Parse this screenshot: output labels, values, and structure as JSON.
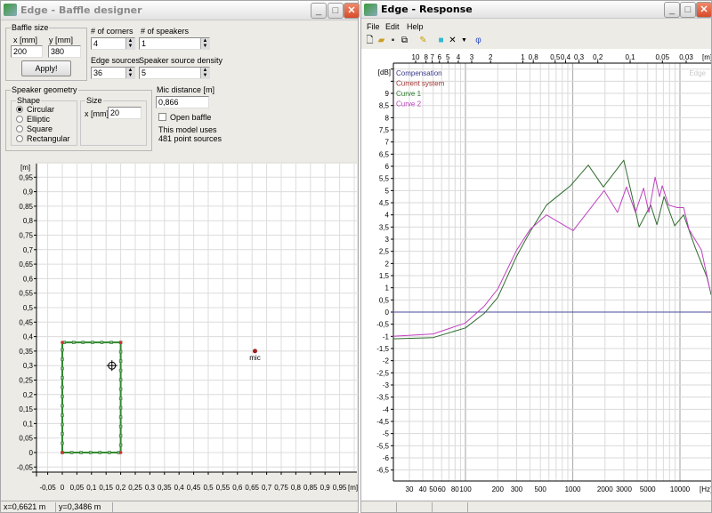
{
  "baffle_window": {
    "title": "Edge - Baffle designer",
    "baffle_size": {
      "legend": "Baffle size",
      "x_label": "x [mm]",
      "y_label": "y [mm]",
      "x_value": "200",
      "y_value": "380",
      "apply_label": "Apply!"
    },
    "corners": {
      "label": "# of corners",
      "value": "4"
    },
    "speakers": {
      "label": "# of speakers",
      "value": "1"
    },
    "edge_sources": {
      "label": "Edge sources",
      "value": "36"
    },
    "speaker_density": {
      "label": "Speaker source density",
      "value": "5"
    },
    "speaker_geometry": {
      "legend": "Speaker geometry",
      "shape_legend": "Shape",
      "shapes": [
        "Circular",
        "Elliptic",
        "Square",
        "Rectangular"
      ],
      "selected_shape": "Circular",
      "size_legend": "Size",
      "size_label": "x [mm]",
      "size_value": "20"
    },
    "mic_distance": {
      "label": "Mic distance [m]",
      "value": "0,866"
    },
    "open_baffle": {
      "label": "Open baffle",
      "checked": false
    },
    "model_info": [
      "This model uses",
      "481 point sources"
    ],
    "plot": {
      "unit": "[m]",
      "mic_label": "mic",
      "x_ticks": [
        "-0,05",
        "0",
        "0,05",
        "0,1",
        "0,15",
        "0,2",
        "0,25",
        "0,3",
        "0,35",
        "0,4",
        "0,45",
        "0,5",
        "0,55",
        "0,6",
        "0,65",
        "0,7",
        "0,75",
        "0,8",
        "0,85",
        "0,9",
        "0,95"
      ],
      "y_ticks": [
        "-0,05",
        "0",
        "0,05",
        "0,1",
        "0,15",
        "0,2",
        "0,25",
        "0,3",
        "0,35",
        "0,4",
        "0,45",
        "0,5",
        "0,55",
        "0,6",
        "0,65",
        "0,7",
        "0,75",
        "0,8",
        "0,85",
        "0,9",
        "0,95"
      ],
      "baffle": [
        0.2,
        0.38
      ],
      "speaker": [
        0.17,
        0.3
      ],
      "mic": [
        0.66,
        0.35
      ]
    },
    "status": {
      "x": "x=0,6621 m",
      "y": "y=0,3486 m"
    }
  },
  "response_window": {
    "title": "Edge - Response",
    "menu": [
      "File",
      "Edit",
      "Help"
    ],
    "toolbar": [
      "new-icon",
      "open-icon",
      "save-icon",
      "copy-icon",
      "pencil-icon",
      "display-icon",
      "delete-icon",
      "dropdown-icon",
      "phase-icon"
    ],
    "watermark": "Edge"
  },
  "chart_data": {
    "type": "line",
    "ylabel": "[dB]",
    "xlabel": "[Hz]",
    "top_axis_label": "[m]",
    "x_scale": "log",
    "xlim": [
      21,
      19600
    ],
    "ylim": [
      -7,
      10
    ],
    "grid": true,
    "x_ticks": [
      "30",
      "40",
      "50",
      "60",
      "80",
      "100",
      "200",
      "300",
      "500",
      "1000",
      "2000",
      "3000",
      "5000",
      "10000"
    ],
    "top_ticks": [
      "10",
      "8",
      "7",
      "6",
      "5",
      "4",
      "3",
      "2",
      "1",
      "0,8",
      "0,5",
      "0,4",
      "0,3",
      "0,2",
      "0,1",
      "0,05",
      "0,03"
    ],
    "y_ticks": [
      "9",
      "8,5",
      "8",
      "7,5",
      "7",
      "6,5",
      "6",
      "5,5",
      "5",
      "4,5",
      "4",
      "3,5",
      "3",
      "2,5",
      "2",
      "1,5",
      "1",
      "0,5",
      "0",
      "-0,5",
      "-1",
      "-1,5",
      "-2",
      "-2,5",
      "-3",
      "-3,5",
      "-4",
      "-4,5",
      "-5",
      "-5,5",
      "-6",
      "-6,5"
    ],
    "legend": [
      {
        "name": "Compensation",
        "color": "#3a3a8a"
      },
      {
        "name": "Current system",
        "color": "#a03030"
      },
      {
        "name": "Curve 1",
        "color": "#2e7d32"
      },
      {
        "name": "Curve 2",
        "color": "#c040c0"
      }
    ],
    "series": [
      {
        "name": "Compensation",
        "x": [
          21,
          19600
        ],
        "y": [
          0,
          0
        ]
      },
      {
        "name": "Curve 1",
        "x": [
          21,
          50,
          100,
          150,
          200,
          300,
          400,
          569,
          953,
          1398,
          1928,
          2997,
          4162,
          5330,
          6095,
          7107,
          8937,
          10810,
          13880,
          17800,
          19600
        ],
        "y": [
          -1.1,
          -1.05,
          -0.65,
          -0.05,
          0.6,
          2.3,
          3.3,
          4.4,
          5.2,
          6.05,
          5.15,
          6.25,
          3.5,
          4.4,
          3.6,
          4.75,
          3.55,
          4.0,
          2.65,
          1.45,
          0.7
        ]
      },
      {
        "name": "Curve 2",
        "x": [
          21,
          50,
          100,
          150,
          200,
          300,
          400,
          569,
          1010,
          1964,
          2617,
          3173,
          3845,
          4577,
          5133,
          5866,
          6455,
          6838,
          7823,
          9467,
          10810,
          12150,
          15850,
          19200
        ],
        "y": [
          -1.0,
          -0.9,
          -0.45,
          0.25,
          0.95,
          2.55,
          3.4,
          4.0,
          3.35,
          5.0,
          4.1,
          5.15,
          4.1,
          5.1,
          4.1,
          5.55,
          4.75,
          5.2,
          4.4,
          4.3,
          4.3,
          3.4,
          2.55,
          0.85
        ]
      }
    ]
  }
}
